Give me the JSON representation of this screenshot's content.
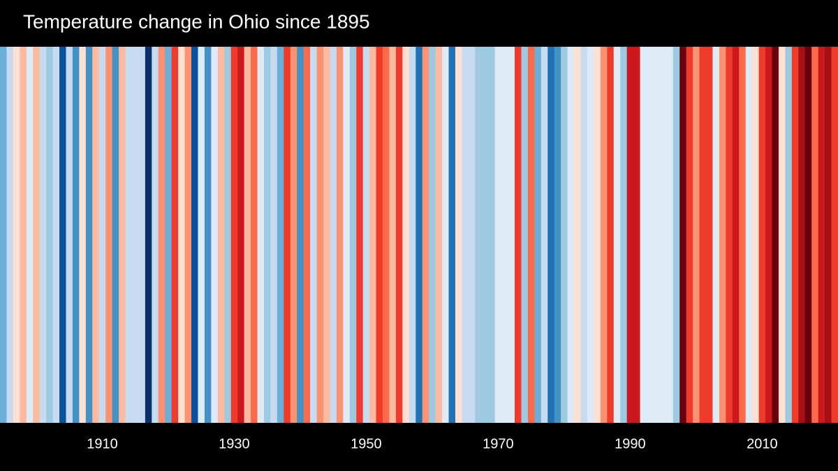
{
  "chart_data": {
    "type": "stripes",
    "title": "Temperature change in Ohio since 1895",
    "x": [
      1895,
      1896,
      1897,
      1898,
      1899,
      1900,
      1901,
      1902,
      1903,
      1904,
      1905,
      1906,
      1907,
      1908,
      1909,
      1910,
      1911,
      1912,
      1913,
      1914,
      1915,
      1916,
      1917,
      1918,
      1919,
      1920,
      1921,
      1922,
      1923,
      1924,
      1925,
      1926,
      1927,
      1928,
      1929,
      1930,
      1931,
      1932,
      1933,
      1934,
      1935,
      1936,
      1937,
      1938,
      1939,
      1940,
      1941,
      1942,
      1943,
      1944,
      1945,
      1946,
      1947,
      1948,
      1949,
      1950,
      1951,
      1952,
      1953,
      1954,
      1955,
      1956,
      1957,
      1958,
      1959,
      1960,
      1961,
      1962,
      1963,
      1964,
      1965,
      1966,
      1967,
      1968,
      1969,
      1970,
      1971,
      1972,
      1973,
      1974,
      1975,
      1976,
      1977,
      1978,
      1979,
      1980,
      1981,
      1982,
      1983,
      1984,
      1985,
      1986,
      1987,
      1988,
      1989,
      1990,
      1991,
      1992,
      1993,
      1994,
      1995,
      1996,
      1997,
      1998,
      1999,
      2000,
      2001,
      2002,
      2003,
      2004,
      2005,
      2006,
      2007,
      2008,
      2009,
      2010,
      2011,
      2012,
      2013,
      2014,
      2015,
      2016,
      2017,
      2018,
      2019,
      2020,
      2021
    ],
    "values": [
      -0.7,
      -0.3,
      0.1,
      0.3,
      -0.1,
      0.3,
      -0.3,
      -0.5,
      -0.3,
      -1.3,
      -0.3,
      -0.9,
      0.1,
      -0.9,
      0.3,
      -0.3,
      0.5,
      -0.9,
      0.3,
      -0.3,
      -0.3,
      -0.3,
      -1.5,
      -0.3,
      0.5,
      -0.7,
      0.9,
      0.1,
      0.5,
      -1.3,
      -0.1,
      -0.9,
      -0.1,
      0.3,
      -0.5,
      0.9,
      1.1,
      0.3,
      0.7,
      -0.1,
      -0.5,
      -0.3,
      -0.7,
      0.9,
      0.5,
      -0.9,
      0.7,
      -0.3,
      0.5,
      0.3,
      -0.3,
      0.5,
      -0.1,
      -0.5,
      0.9,
      -0.3,
      0.3,
      0.9,
      0.7,
      0.3,
      0.9,
      0.1,
      -0.3,
      -1.1,
      0.5,
      -0.5,
      0.3,
      -0.1,
      -1.1,
      0.1,
      -0.3,
      -0.3,
      -0.5,
      -0.5,
      -0.5,
      -0.1,
      -0.1,
      -0.1,
      0.9,
      -0.5,
      0.7,
      -0.7,
      -0.3,
      -1.1,
      -0.9,
      -0.5,
      -0.1,
      0.1,
      -0.3,
      -0.1,
      0.1,
      0.5,
      0.9,
      -0.1,
      -0.5,
      1.1,
      1.1,
      -0.1,
      -0.1,
      -0.1,
      -0.1,
      -0.1,
      -0.5,
      1.5,
      0.9,
      0.5,
      0.9,
      0.9,
      -0.1,
      0.5,
      0.9,
      1.1,
      0.7,
      -0.1,
      0.1,
      0.9,
      1.1,
      1.5,
      0.1,
      -0.5,
      0.9,
      1.3,
      1.5,
      0.7,
      1.1,
      1.3,
      0.9
    ],
    "xlim": [
      1894.5,
      2021.5
    ],
    "xticks": [
      1910,
      1930,
      1950,
      1970,
      1990,
      2010
    ],
    "vlim": [
      -1.6,
      1.6
    ],
    "colorscale": [
      "#08306b",
      "#08519c",
      "#2171b5",
      "#4292c6",
      "#6baed6",
      "#9ecae1",
      "#c6dbef",
      "#deebf7",
      "#fee0d2",
      "#fcbba1",
      "#fc9272",
      "#fb6a4a",
      "#ef3b2c",
      "#cb181d",
      "#a50f15",
      "#67000d"
    ]
  }
}
